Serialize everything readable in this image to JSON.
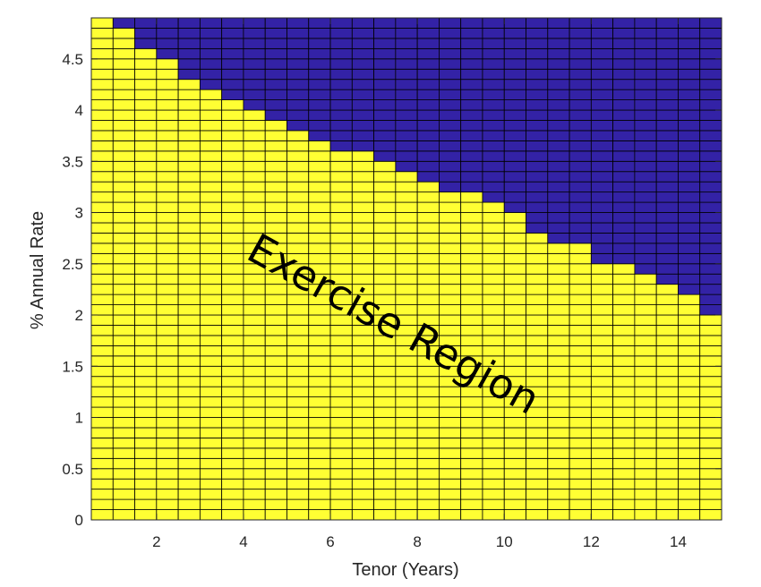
{
  "chart_data": {
    "type": "heatmap",
    "xlabel": "Tenor (Years)",
    "ylabel": "% Annual Rate",
    "xlim": [
      0.5,
      15
    ],
    "ylim": [
      0,
      4.9
    ],
    "x_ticks": [
      2,
      4,
      6,
      8,
      10,
      12,
      14
    ],
    "y_ticks": [
      0,
      0.5,
      1,
      1.5,
      2,
      2.5,
      3,
      3.5,
      4,
      4.5
    ],
    "x_tick_labels": [
      "2",
      "4",
      "6",
      "8",
      "10",
      "12",
      "14"
    ],
    "y_tick_labels": [
      "0",
      "0.5",
      "1",
      "1.5",
      "2",
      "2.5",
      "3",
      "3.5",
      "4",
      "4.5"
    ],
    "grid_x_start": 0.5,
    "grid_x_step": 0.5,
    "grid_y_step": 0.1,
    "tenor_boundaries": [
      {
        "tenor_from": 0.5,
        "tenor_to": 1.0,
        "rate_boundary": 4.9
      },
      {
        "tenor_from": 1.0,
        "tenor_to": 1.5,
        "rate_boundary": 4.8
      },
      {
        "tenor_from": 1.5,
        "tenor_to": 2.0,
        "rate_boundary": 4.6
      },
      {
        "tenor_from": 2.0,
        "tenor_to": 2.5,
        "rate_boundary": 4.5
      },
      {
        "tenor_from": 2.5,
        "tenor_to": 3.0,
        "rate_boundary": 4.3
      },
      {
        "tenor_from": 3.0,
        "tenor_to": 3.5,
        "rate_boundary": 4.2
      },
      {
        "tenor_from": 3.5,
        "tenor_to": 4.0,
        "rate_boundary": 4.1
      },
      {
        "tenor_from": 4.0,
        "tenor_to": 4.5,
        "rate_boundary": 4.0
      },
      {
        "tenor_from": 4.5,
        "tenor_to": 5.0,
        "rate_boundary": 3.9
      },
      {
        "tenor_from": 5.0,
        "tenor_to": 5.5,
        "rate_boundary": 3.8
      },
      {
        "tenor_from": 5.5,
        "tenor_to": 6.0,
        "rate_boundary": 3.7
      },
      {
        "tenor_from": 6.0,
        "tenor_to": 6.5,
        "rate_boundary": 3.6
      },
      {
        "tenor_from": 6.5,
        "tenor_to": 7.0,
        "rate_boundary": 3.6
      },
      {
        "tenor_from": 7.0,
        "tenor_to": 7.5,
        "rate_boundary": 3.5
      },
      {
        "tenor_from": 7.5,
        "tenor_to": 8.0,
        "rate_boundary": 3.4
      },
      {
        "tenor_from": 8.0,
        "tenor_to": 8.5,
        "rate_boundary": 3.3
      },
      {
        "tenor_from": 8.5,
        "tenor_to": 9.0,
        "rate_boundary": 3.2
      },
      {
        "tenor_from": 9.0,
        "tenor_to": 9.5,
        "rate_boundary": 3.2
      },
      {
        "tenor_from": 9.5,
        "tenor_to": 10.0,
        "rate_boundary": 3.1
      },
      {
        "tenor_from": 10.0,
        "tenor_to": 10.5,
        "rate_boundary": 3.0
      },
      {
        "tenor_from": 10.5,
        "tenor_to": 11.0,
        "rate_boundary": 2.8
      },
      {
        "tenor_from": 11.0,
        "tenor_to": 11.5,
        "rate_boundary": 2.7
      },
      {
        "tenor_from": 11.5,
        "tenor_to": 12.0,
        "rate_boundary": 2.7
      },
      {
        "tenor_from": 12.0,
        "tenor_to": 12.5,
        "rate_boundary": 2.5
      },
      {
        "tenor_from": 12.5,
        "tenor_to": 13.0,
        "rate_boundary": 2.5
      },
      {
        "tenor_from": 13.0,
        "tenor_to": 13.5,
        "rate_boundary": 2.4
      },
      {
        "tenor_from": 13.5,
        "tenor_to": 14.0,
        "rate_boundary": 2.3
      },
      {
        "tenor_from": 14.0,
        "tenor_to": 14.5,
        "rate_boundary": 2.2
      },
      {
        "tenor_from": 14.5,
        "tenor_to": 15.0,
        "rate_boundary": 2.0
      }
    ],
    "colors": {
      "exercise": "#ffff33",
      "hold": "#3322a6",
      "cell_edge": "#000000",
      "axis": "#262626"
    },
    "annotation": "Exercise Region"
  }
}
